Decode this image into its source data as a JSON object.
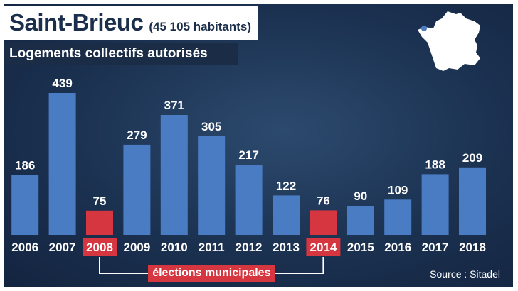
{
  "header": {
    "title": "Saint-Brieuc",
    "population": "(45 105 habitants)",
    "subtitle": "Logements collectifs autorisés"
  },
  "annotation": "élections municipales",
  "source": "Source : Sitadel",
  "colors": {
    "bar": "#4a7cc4",
    "highlight": "#d6363f",
    "background": "#1b3150"
  },
  "chart_data": {
    "type": "bar",
    "title": "Logements collectifs autorisés",
    "categories": [
      "2006",
      "2007",
      "2008",
      "2009",
      "2010",
      "2011",
      "2012",
      "2013",
      "2014",
      "2015",
      "2016",
      "2017",
      "2018"
    ],
    "values": [
      186,
      439,
      75,
      279,
      371,
      305,
      217,
      122,
      76,
      90,
      109,
      188,
      209
    ],
    "highlighted": [
      "2008",
      "2014"
    ],
    "data_labels": true,
    "grid": false,
    "legend": "none"
  }
}
